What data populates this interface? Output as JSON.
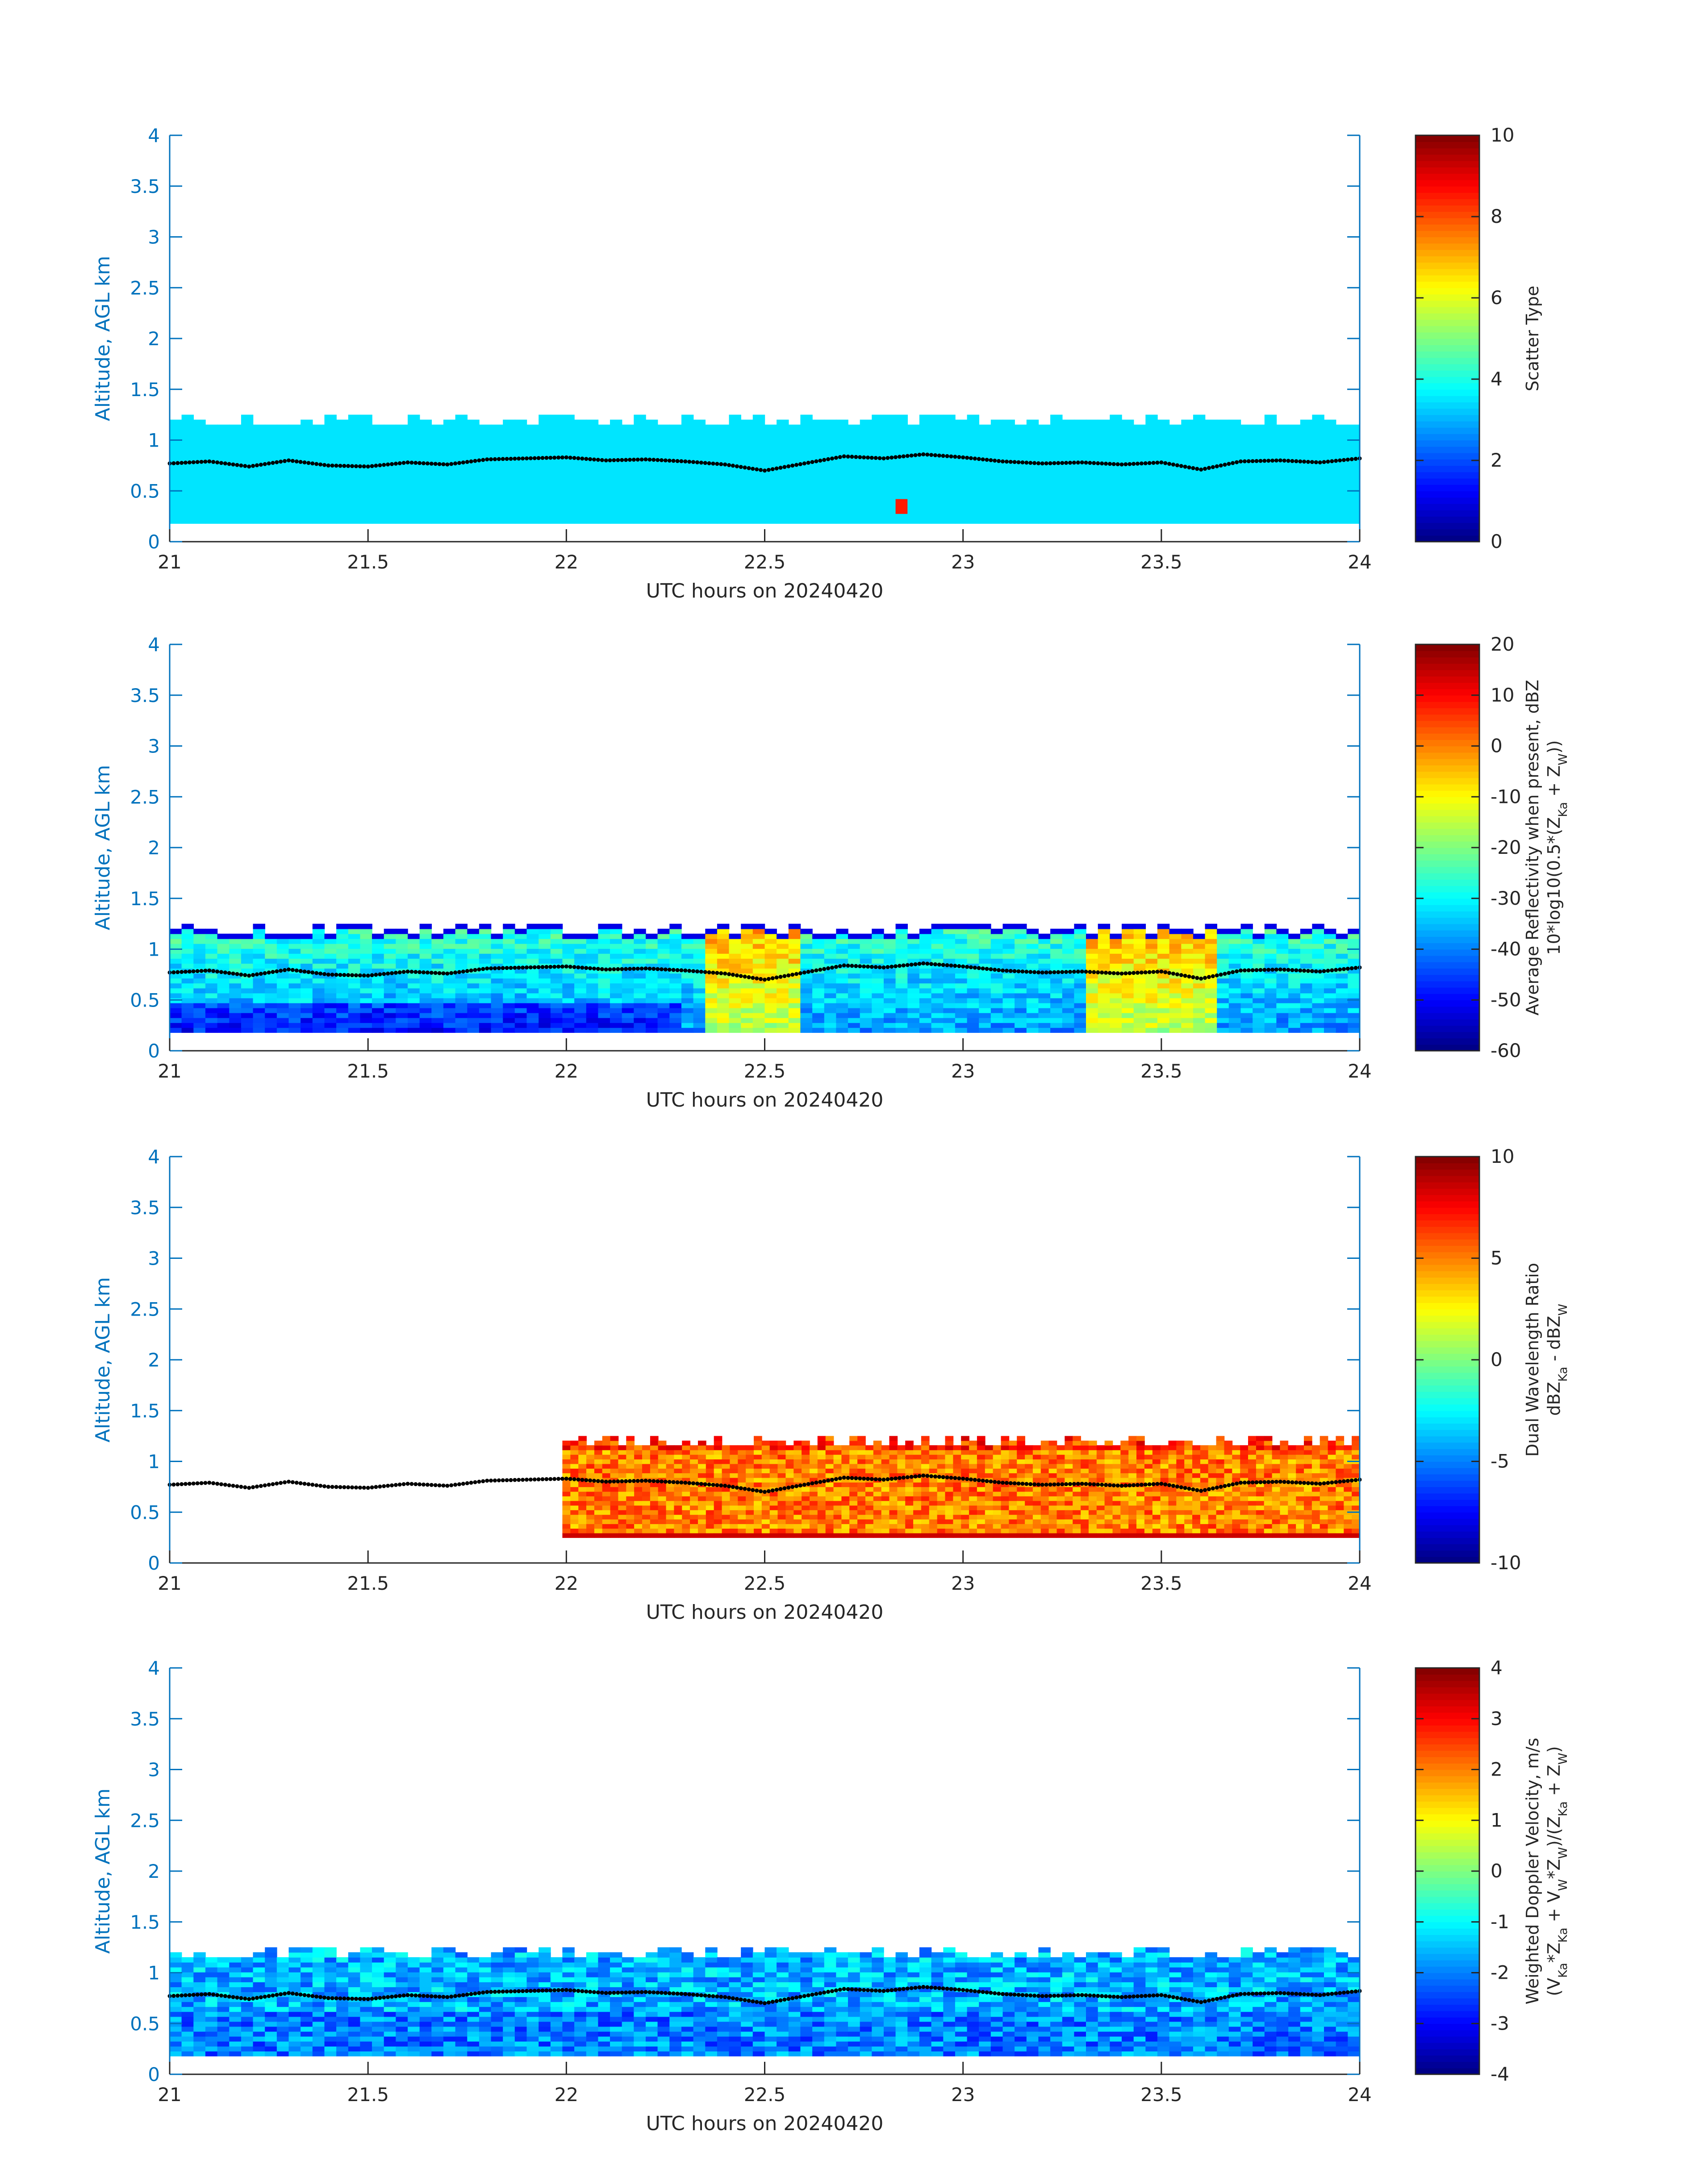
{
  "colors": {
    "axis_y": "#0072BD",
    "axis_x": "#262626",
    "trace": "#000000"
  },
  "chart_data": [
    {
      "type": "heatmap",
      "field": "scatter_type",
      "xlabel": "UTC hours on 20240420",
      "ylabel": "Altitude, AGL km",
      "xlim": [
        21,
        24
      ],
      "ylim": [
        0,
        4
      ],
      "xticks": [
        "21",
        "21.5",
        "22",
        "22.5",
        "23",
        "23.5",
        "24"
      ],
      "yticks": [
        "0",
        "0.5",
        "1",
        "1.5",
        "2",
        "2.5",
        "3",
        "3.5",
        "4"
      ],
      "colorbar": {
        "label_lines": [
          "Scatter Type"
        ],
        "clim": [
          0,
          10
        ],
        "ticks": [
          "0",
          "2",
          "4",
          "6",
          "8",
          "10"
        ],
        "colormap": "jet"
      },
      "data_extent_x": [
        21,
        24
      ],
      "data_extent_y": [
        0.18,
        1.25
      ],
      "dominant_value": 3.5,
      "note_values": [
        {
          "x": 22.84,
          "y": 0.35,
          "value": 8.5
        }
      ]
    },
    {
      "type": "heatmap",
      "field": "average_reflectivity",
      "xlabel": "UTC hours on 20240420",
      "ylabel": "Altitude, AGL km",
      "xlim": [
        21,
        24
      ],
      "ylim": [
        0,
        4
      ],
      "xticks": [
        "21",
        "21.5",
        "22",
        "22.5",
        "23",
        "23.5",
        "24"
      ],
      "yticks": [
        "0",
        "0.5",
        "1",
        "1.5",
        "2",
        "2.5",
        "3",
        "3.5",
        "4"
      ],
      "colorbar": {
        "label_lines": [
          "Average Reflectivity when present, dBZ",
          "10*log10(0.5*(Z_Ka + Z_W))"
        ],
        "clim": [
          -60,
          20
        ],
        "ticks": [
          "-60",
          "-50",
          "-40",
          "-30",
          "-20",
          "-10",
          "0",
          "10",
          "20"
        ],
        "colormap": "jet"
      },
      "data_extent_x": [
        21,
        24
      ],
      "data_extent_y": [
        0.18,
        1.25
      ],
      "value_range_observed": [
        -55,
        -5
      ]
    },
    {
      "type": "heatmap",
      "field": "dual_wavelength_ratio",
      "xlabel": "UTC hours on 20240420",
      "ylabel": "Altitude, AGL km",
      "xlim": [
        21,
        24
      ],
      "ylim": [
        0,
        4
      ],
      "xticks": [
        "21",
        "21.5",
        "22",
        "22.5",
        "23",
        "23.5",
        "24"
      ],
      "yticks": [
        "0",
        "0.5",
        "1",
        "1.5",
        "2",
        "2.5",
        "3",
        "3.5",
        "4"
      ],
      "colorbar": {
        "label_lines": [
          "Dual Wavelength Ratio",
          "dBZ_Ka - dBZ_W"
        ],
        "clim": [
          -10,
          10
        ],
        "ticks": [
          "-10",
          "-5",
          "0",
          "5",
          "10"
        ],
        "colormap": "jet"
      },
      "data_extent_x": [
        21.99,
        24
      ],
      "data_extent_y": [
        0.25,
        1.25
      ],
      "value_range_observed": [
        3,
        9
      ]
    },
    {
      "type": "heatmap",
      "field": "weighted_doppler_velocity",
      "xlabel": "UTC hours on 20240420",
      "ylabel": "Altitude, AGL km",
      "xlim": [
        21,
        24
      ],
      "ylim": [
        0,
        4
      ],
      "xticks": [
        "21",
        "21.5",
        "22",
        "22.5",
        "23",
        "23.5",
        "24"
      ],
      "yticks": [
        "0",
        "0.5",
        "1",
        "1.5",
        "2",
        "2.5",
        "3",
        "3.5",
        "4"
      ],
      "colorbar": {
        "label_lines": [
          "Weighted Doppler Velocity, m/s",
          "(V_Ka*Z_Ka + V_W*Z_W)/(Z_Ka + Z_W)"
        ],
        "clim": [
          -4,
          4
        ],
        "ticks": [
          "-4",
          "-3",
          "-2",
          "-1",
          "0",
          "1",
          "2",
          "3",
          "4"
        ],
        "colormap": "jet"
      },
      "data_extent_x": [
        21,
        24
      ],
      "data_extent_y": [
        0.18,
        1.25
      ],
      "value_range_observed": [
        -3,
        0.5
      ]
    }
  ],
  "overlay_trace": {
    "label": "dotted black line (cloud base estimate)",
    "x": [
      21.0,
      21.1,
      21.2,
      21.3,
      21.4,
      21.5,
      21.6,
      21.7,
      21.8,
      21.9,
      22.0,
      22.1,
      22.2,
      22.3,
      22.4,
      22.5,
      22.6,
      22.7,
      22.8,
      22.9,
      23.0,
      23.1,
      23.2,
      23.3,
      23.4,
      23.5,
      23.6,
      23.7,
      23.8,
      23.9,
      24.0
    ],
    "y": [
      0.77,
      0.79,
      0.74,
      0.8,
      0.75,
      0.74,
      0.78,
      0.76,
      0.81,
      0.82,
      0.83,
      0.8,
      0.81,
      0.79,
      0.76,
      0.7,
      0.77,
      0.84,
      0.82,
      0.86,
      0.83,
      0.79,
      0.77,
      0.78,
      0.76,
      0.78,
      0.71,
      0.79,
      0.8,
      0.78,
      0.82
    ]
  }
}
